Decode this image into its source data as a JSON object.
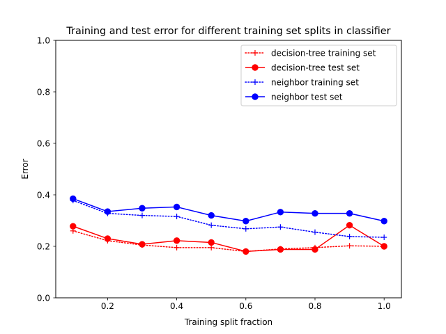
{
  "chart_data": {
    "type": "line",
    "title": "Training and test error for different training set splits in classifier",
    "xlabel": "Training split fraction",
    "ylabel": "Error",
    "xlim": [
      0.05,
      1.05
    ],
    "ylim": [
      0.0,
      1.0
    ],
    "xticks": [
      0.2,
      0.4,
      0.6,
      0.8,
      1.0
    ],
    "xtick_labels": [
      "0.2",
      "0.4",
      "0.6",
      "0.8",
      "1.0"
    ],
    "yticks": [
      0.0,
      0.2,
      0.4,
      0.6,
      0.8,
      1.0
    ],
    "ytick_labels": [
      "0.0",
      "0.2",
      "0.4",
      "0.6",
      "0.8",
      "1.0"
    ],
    "grid": false,
    "legend_position": "top-right",
    "x": [
      0.1,
      0.2,
      0.3,
      0.4,
      0.5,
      0.6,
      0.7,
      0.8,
      0.9,
      1.0
    ],
    "series": [
      {
        "name": "decision-tree training set",
        "color": "#ff0000",
        "line_style": "dotted",
        "marker": "plus",
        "values": [
          0.26,
          0.222,
          0.205,
          0.195,
          0.195,
          0.18,
          0.19,
          0.195,
          0.202,
          0.2
        ]
      },
      {
        "name": "decision-tree test set",
        "color": "#ff0000",
        "line_style": "solid",
        "marker": "circle",
        "values": [
          0.278,
          0.23,
          0.208,
          0.222,
          0.215,
          0.18,
          0.188,
          0.188,
          0.282,
          0.2
        ]
      },
      {
        "name": "neighbor training set",
        "color": "#0000ff",
        "line_style": "dotted",
        "marker": "plus",
        "values": [
          0.378,
          0.328,
          0.32,
          0.316,
          0.282,
          0.268,
          0.275,
          0.255,
          0.238,
          0.235
        ]
      },
      {
        "name": "neighbor test set",
        "color": "#0000ff",
        "line_style": "solid",
        "marker": "circle",
        "values": [
          0.385,
          0.335,
          0.348,
          0.353,
          0.32,
          0.298,
          0.333,
          0.328,
          0.328,
          0.298
        ]
      }
    ]
  }
}
